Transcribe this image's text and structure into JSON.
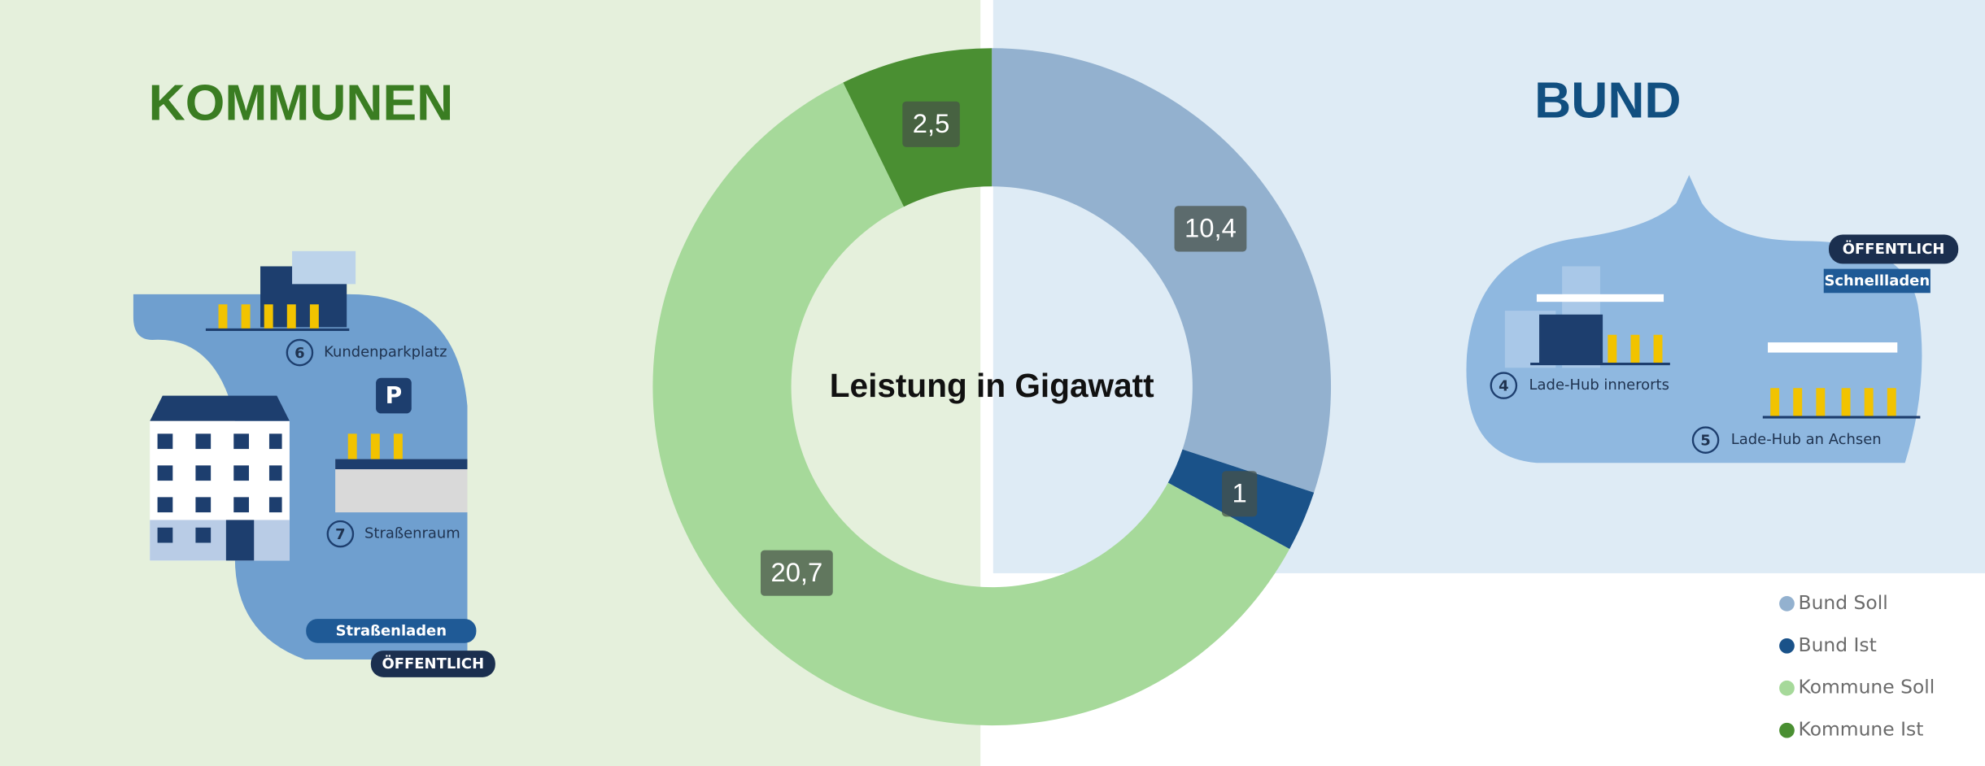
{
  "chart_data": {
    "type": "donut",
    "title": "Leistung in Gigawatt",
    "categories": [
      "Bund Soll",
      "Bund Ist",
      "Kommune Soll",
      "Kommune Ist"
    ],
    "values": [
      10.4,
      1,
      20.7,
      2.5
    ],
    "value_labels": [
      "10,4",
      "1",
      "20,7",
      "2,5"
    ],
    "colors": [
      "#93b1cf",
      "#1a5289",
      "#a6d99a",
      "#4a8f32"
    ],
    "legend": "bottom-right",
    "annotations": [
      "KOMMUNEN",
      "BUND",
      "6",
      "Kundenparkplatz",
      "7",
      "Straßenraum",
      "Straßenladen",
      "ÖFFENTLICH",
      "4",
      "Lade-Hub innerorts",
      "5",
      "Lade-Hub an Achsen",
      "ÖFFENTLICH",
      "Schnellladen"
    ]
  }
}
